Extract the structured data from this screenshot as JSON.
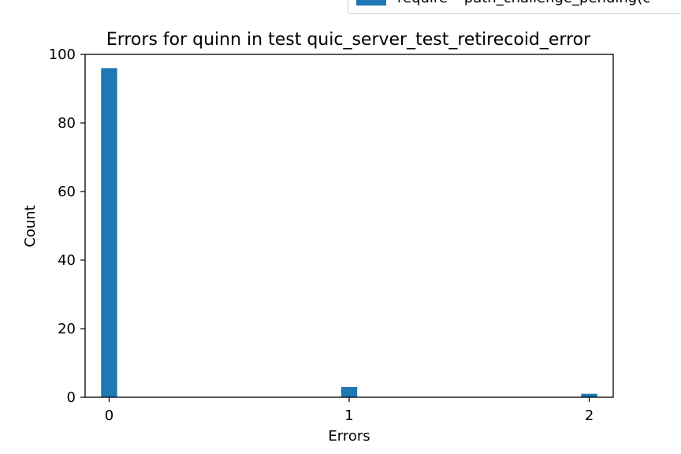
{
  "chart_data": {
    "type": "bar",
    "title": "Errors for quinn in test quic_server_test_retirecoid_error",
    "xlabel": "Errors",
    "ylabel": "Count",
    "categories": [
      0,
      1,
      2
    ],
    "values": [
      96,
      3,
      1
    ],
    "bar_width": 0.067,
    "xlim": [
      -0.1,
      2.1
    ],
    "ylim": [
      0,
      100
    ],
    "xticks": [
      "0",
      "1",
      "2"
    ],
    "yticks": [
      "0",
      "20",
      "40",
      "60",
      "80",
      "100"
    ],
    "series_color": "#1f77b4",
    "legend": {
      "position": "top-right",
      "entries": [
        "require ~path_challenge_pending(c"
      ]
    }
  }
}
